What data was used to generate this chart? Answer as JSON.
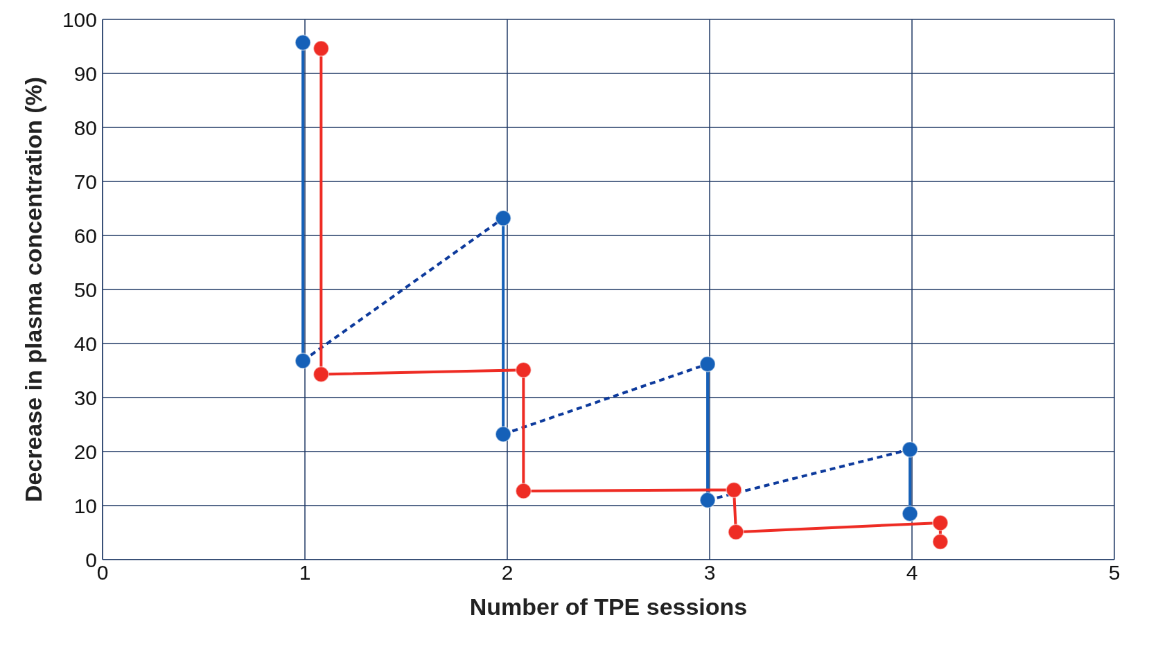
{
  "chart_data": {
    "type": "line",
    "xlabel": "Number of TPE sessions",
    "ylabel": "Decrease in plasma concentration (%)",
    "xlim": [
      0,
      5
    ],
    "xticks": [
      0,
      1,
      2,
      3,
      4,
      5
    ],
    "ylim": [
      0,
      100
    ],
    "yticks": [
      0,
      10,
      20,
      30,
      40,
      50,
      60,
      70,
      80,
      90,
      100
    ],
    "grid": true,
    "legend": false,
    "series": [
      {
        "color": "#1560b8",
        "marker": "circle",
        "line_style": "solid",
        "x": [
          0.99,
          0.99
        ],
        "values": [
          95.7,
          36.8
        ]
      },
      {
        "color": "#1560b8",
        "marker": "circle",
        "line_style": "solid",
        "x": [
          1.98,
          1.98
        ],
        "values": [
          63.2,
          23.2
        ]
      },
      {
        "color": "#1560b8",
        "marker": "circle",
        "line_style": "solid",
        "x": [
          2.99,
          2.99
        ],
        "values": [
          36.2,
          11.0
        ]
      },
      {
        "color": "#1560b8",
        "marker": "circle",
        "line_style": "solid",
        "x": [
          3.99,
          3.99
        ],
        "values": [
          20.4,
          8.5
        ]
      },
      {
        "color": "#0d3a9c",
        "marker": "none",
        "line_style": "dashed",
        "x": [
          0.99,
          1.98
        ],
        "values": [
          36.8,
          63.2
        ]
      },
      {
        "color": "#0d3a9c",
        "marker": "none",
        "line_style": "dashed",
        "x": [
          1.98,
          2.99
        ],
        "values": [
          23.2,
          36.2
        ]
      },
      {
        "color": "#0d3a9c",
        "marker": "none",
        "line_style": "dashed",
        "x": [
          2.99,
          3.99
        ],
        "values": [
          11.0,
          20.4
        ]
      },
      {
        "color": "#ee2c24",
        "marker": "circle",
        "line_style": "solid",
        "x": [
          1.08,
          1.08,
          2.08,
          2.08,
          3.12,
          3.13,
          4.14,
          4.14
        ],
        "values": [
          94.6,
          34.3,
          35.1,
          12.7,
          12.9,
          5.1,
          6.8,
          3.3
        ]
      }
    ]
  }
}
